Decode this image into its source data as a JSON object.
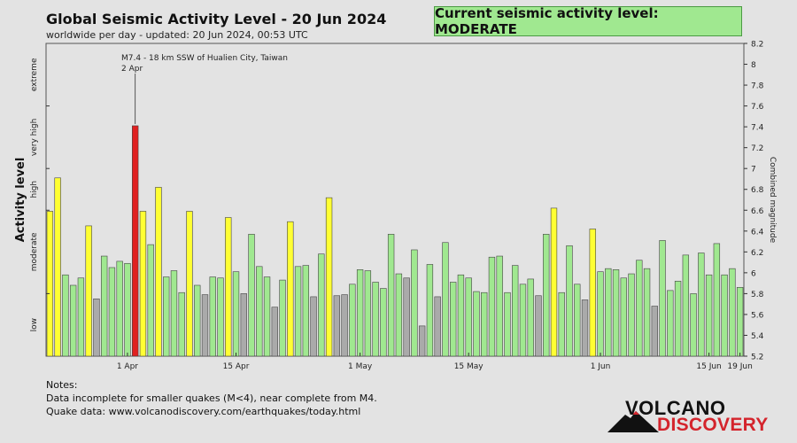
{
  "header": {
    "title": "Global Seismic Activity Level - 20 Jun 2024",
    "subtitle": "worldwide per day - updated: 20 Jun 2024, 00:53 UTC",
    "current_level_label": "Current seismic activity level: MODERATE"
  },
  "notes": {
    "heading": "Notes:",
    "line1": "Data incomplete for smaller quakes (M<4), near complete from M4.",
    "line2": "Quake data: www.volcanodiscovery.com/earthquakes/today.html"
  },
  "logo": {
    "top": "VOLCANO",
    "bottom": "DISCOVERY"
  },
  "colors": {
    "background": "#e3e3e3",
    "gray": "#aaaaaa",
    "green": "#a0e890",
    "yellow": "#ffff33",
    "red": "#e02020",
    "bar_stroke": "#444444",
    "level_box": "#a0e890",
    "logo_red": "#d4242c"
  },
  "chart_data": {
    "type": "bar",
    "ylabel": "Activity level",
    "y2label": "Combined magnitude",
    "ylim": [
      5.2,
      8.2
    ],
    "yticks": [
      5.2,
      5.4,
      5.6,
      5.8,
      6.0,
      6.2,
      6.4,
      6.6,
      6.8,
      7.0,
      7.2,
      7.4,
      7.6,
      7.8,
      8.0,
      8.2
    ],
    "ytick_labels": [
      "5.2",
      "5.4",
      "5.6",
      "5.8",
      "6",
      "6.2",
      "6.4",
      "6.6",
      "6.8",
      "7",
      "7.2",
      "7.4",
      "7.6",
      "7.8",
      "8",
      "8.2"
    ],
    "level_bands": [
      {
        "label": "low",
        "range": [
          5.2,
          5.8
        ]
      },
      {
        "label": "moderate",
        "range": [
          5.8,
          6.6
        ]
      },
      {
        "label": "high",
        "range": [
          6.6,
          7.0
        ]
      },
      {
        "label": "very high",
        "range": [
          7.0,
          7.6
        ]
      },
      {
        "label": "extreme",
        "range": [
          7.6,
          8.2
        ]
      }
    ],
    "level_band_boundaries": [
      5.8,
      6.6,
      7.0,
      7.6
    ],
    "xtick_labels": [
      {
        "label": "1 Apr",
        "index": 10
      },
      {
        "label": "15 Apr",
        "index": 24
      },
      {
        "label": "1 May",
        "index": 40
      },
      {
        "label": "15 May",
        "index": 54
      },
      {
        "label": "1 Jun",
        "index": 71
      },
      {
        "label": "15 Jun",
        "index": 85
      },
      {
        "label": "19 Jun",
        "index": 89
      }
    ],
    "annotation": {
      "line1": "M7.4 - 18 km SSW of Hualien City, Taiwan",
      "line2": "2 Apr",
      "index": 11
    },
    "values": [
      6.59,
      6.91,
      5.98,
      5.88,
      5.95,
      6.45,
      5.75,
      6.16,
      6.05,
      6.11,
      6.09,
      7.41,
      6.59,
      6.27,
      6.82,
      5.96,
      6.02,
      5.81,
      6.59,
      5.88,
      5.79,
      5.96,
      5.95,
      6.53,
      6.01,
      5.8,
      6.37,
      6.06,
      5.96,
      5.67,
      5.93,
      6.49,
      6.06,
      6.07,
      5.77,
      6.18,
      6.72,
      5.78,
      5.79,
      5.89,
      6.03,
      6.02,
      5.91,
      5.85,
      6.37,
      5.99,
      5.95,
      6.22,
      5.49,
      6.08,
      5.77,
      6.29,
      5.91,
      5.98,
      5.95,
      5.82,
      5.81,
      6.15,
      6.16,
      5.81,
      6.07,
      5.89,
      5.94,
      5.78,
      6.37,
      6.62,
      5.81,
      6.26,
      5.89,
      5.74,
      6.42,
      6.01,
      6.04,
      6.03,
      5.95,
      5.99,
      6.12,
      6.04,
      5.68,
      6.31,
      5.83,
      5.92,
      6.17,
      5.8,
      6.19,
      5.98,
      6.28,
      5.98,
      6.04,
      5.86
    ],
    "colors": [
      "yellow",
      "yellow",
      "green",
      "green",
      "green",
      "yellow",
      "gray",
      "green",
      "green",
      "green",
      "green",
      "red",
      "yellow",
      "green",
      "yellow",
      "green",
      "green",
      "green",
      "yellow",
      "green",
      "gray",
      "green",
      "green",
      "yellow",
      "green",
      "gray",
      "green",
      "green",
      "green",
      "gray",
      "green",
      "yellow",
      "green",
      "green",
      "gray",
      "green",
      "yellow",
      "gray",
      "gray",
      "green",
      "green",
      "green",
      "green",
      "green",
      "green",
      "green",
      "gray",
      "green",
      "gray",
      "green",
      "gray",
      "green",
      "green",
      "green",
      "green",
      "green",
      "green",
      "green",
      "green",
      "green",
      "green",
      "green",
      "green",
      "gray",
      "green",
      "yellow",
      "green",
      "green",
      "green",
      "gray",
      "yellow",
      "green",
      "green",
      "green",
      "green",
      "green",
      "green",
      "green",
      "gray",
      "green",
      "green",
      "green",
      "green",
      "green",
      "green",
      "green",
      "green",
      "green",
      "green",
      "green"
    ]
  }
}
